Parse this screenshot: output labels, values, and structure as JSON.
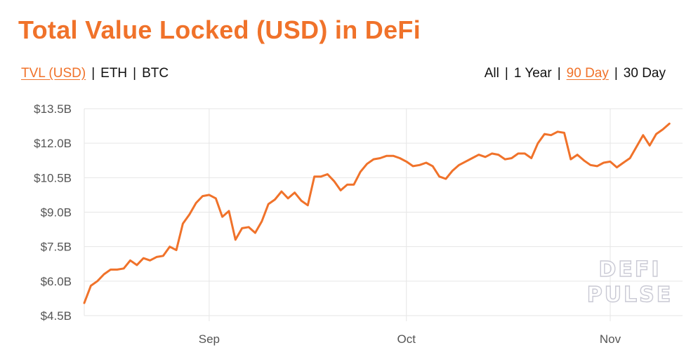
{
  "title": "Total Value Locked (USD) in DeFi",
  "metric_tabs": [
    {
      "label": "TVL (USD)",
      "active": true
    },
    {
      "label": "ETH",
      "active": false
    },
    {
      "label": "BTC",
      "active": false
    }
  ],
  "range_tabs": [
    {
      "label": "All",
      "active": false
    },
    {
      "label": "1 Year",
      "active": false
    },
    {
      "label": "90 Day",
      "active": true
    },
    {
      "label": "30 Day",
      "active": false
    }
  ],
  "separator": "|",
  "watermark": {
    "line1": "DEFI",
    "line2": "PULSE"
  },
  "colors": {
    "accent": "#f0722a",
    "grid": "#e6e6e6",
    "text": "#111111",
    "tick": "#555555"
  },
  "chart_data": {
    "type": "line",
    "title": "Total Value Locked (USD) in DeFi",
    "xlabel": "",
    "ylabel": "",
    "y_ticks": [
      {
        "value": 4.5,
        "label": "$4.5B"
      },
      {
        "value": 6.0,
        "label": "$6.0B"
      },
      {
        "value": 7.5,
        "label": "$7.5B"
      },
      {
        "value": 9.0,
        "label": "$9.0B"
      },
      {
        "value": 10.5,
        "label": "$10.5B"
      },
      {
        "value": 12.0,
        "label": "$12.0B"
      },
      {
        "value": 13.5,
        "label": "$13.5B"
      }
    ],
    "x_ticks": [
      {
        "day": 19,
        "label": "Sep"
      },
      {
        "day": 49,
        "label": "Oct"
      },
      {
        "day": 80,
        "label": "Nov"
      }
    ],
    "ylim": [
      4.5,
      13.5
    ],
    "xlim": [
      0,
      91
    ],
    "grid": true,
    "series": [
      {
        "color": "#f0722a",
        "points": [
          [
            0,
            5.05
          ],
          [
            1,
            5.8
          ],
          [
            2,
            6.0
          ],
          [
            3,
            6.3
          ],
          [
            4,
            6.5
          ],
          [
            5,
            6.5
          ],
          [
            6,
            6.55
          ],
          [
            7,
            6.9
          ],
          [
            8,
            6.7
          ],
          [
            9,
            7.0
          ],
          [
            10,
            6.9
          ],
          [
            11,
            7.05
          ],
          [
            12,
            7.1
          ],
          [
            13,
            7.5
          ],
          [
            14,
            7.35
          ],
          [
            15,
            8.5
          ],
          [
            16,
            8.9
          ],
          [
            17,
            9.4
          ],
          [
            18,
            9.7
          ],
          [
            19,
            9.75
          ],
          [
            20,
            9.6
          ],
          [
            21,
            8.8
          ],
          [
            22,
            9.05
          ],
          [
            23,
            7.8
          ],
          [
            24,
            8.3
          ],
          [
            25,
            8.35
          ],
          [
            26,
            8.1
          ],
          [
            27,
            8.6
          ],
          [
            28,
            9.35
          ],
          [
            29,
            9.55
          ],
          [
            30,
            9.9
          ],
          [
            31,
            9.6
          ],
          [
            32,
            9.85
          ],
          [
            33,
            9.5
          ],
          [
            34,
            9.3
          ],
          [
            35,
            10.55
          ],
          [
            36,
            10.55
          ],
          [
            37,
            10.65
          ],
          [
            38,
            10.35
          ],
          [
            39,
            9.95
          ],
          [
            40,
            10.2
          ],
          [
            41,
            10.2
          ],
          [
            42,
            10.75
          ],
          [
            43,
            11.1
          ],
          [
            44,
            11.3
          ],
          [
            45,
            11.35
          ],
          [
            46,
            11.45
          ],
          [
            47,
            11.45
          ],
          [
            48,
            11.35
          ],
          [
            49,
            11.2
          ],
          [
            50,
            11.0
          ],
          [
            51,
            11.05
          ],
          [
            52,
            11.15
          ],
          [
            53,
            11.0
          ],
          [
            54,
            10.55
          ],
          [
            55,
            10.45
          ],
          [
            56,
            10.8
          ],
          [
            57,
            11.05
          ],
          [
            58,
            11.2
          ],
          [
            59,
            11.35
          ],
          [
            60,
            11.5
          ],
          [
            61,
            11.4
          ],
          [
            62,
            11.55
          ],
          [
            63,
            11.5
          ],
          [
            64,
            11.3
          ],
          [
            65,
            11.35
          ],
          [
            66,
            11.55
          ],
          [
            67,
            11.55
          ],
          [
            68,
            11.35
          ],
          [
            69,
            12.0
          ],
          [
            70,
            12.4
          ],
          [
            71,
            12.35
          ],
          [
            72,
            12.5
          ],
          [
            73,
            12.45
          ],
          [
            74,
            11.3
          ],
          [
            75,
            11.5
          ],
          [
            76,
            11.25
          ],
          [
            77,
            11.05
          ],
          [
            78,
            11.0
          ],
          [
            79,
            11.15
          ],
          [
            80,
            11.2
          ],
          [
            81,
            10.95
          ],
          [
            82,
            11.15
          ],
          [
            83,
            11.35
          ],
          [
            84,
            11.85
          ],
          [
            85,
            12.35
          ],
          [
            86,
            11.9
          ],
          [
            87,
            12.4
          ],
          [
            88,
            12.6
          ],
          [
            89,
            12.85
          ]
        ]
      }
    ]
  }
}
